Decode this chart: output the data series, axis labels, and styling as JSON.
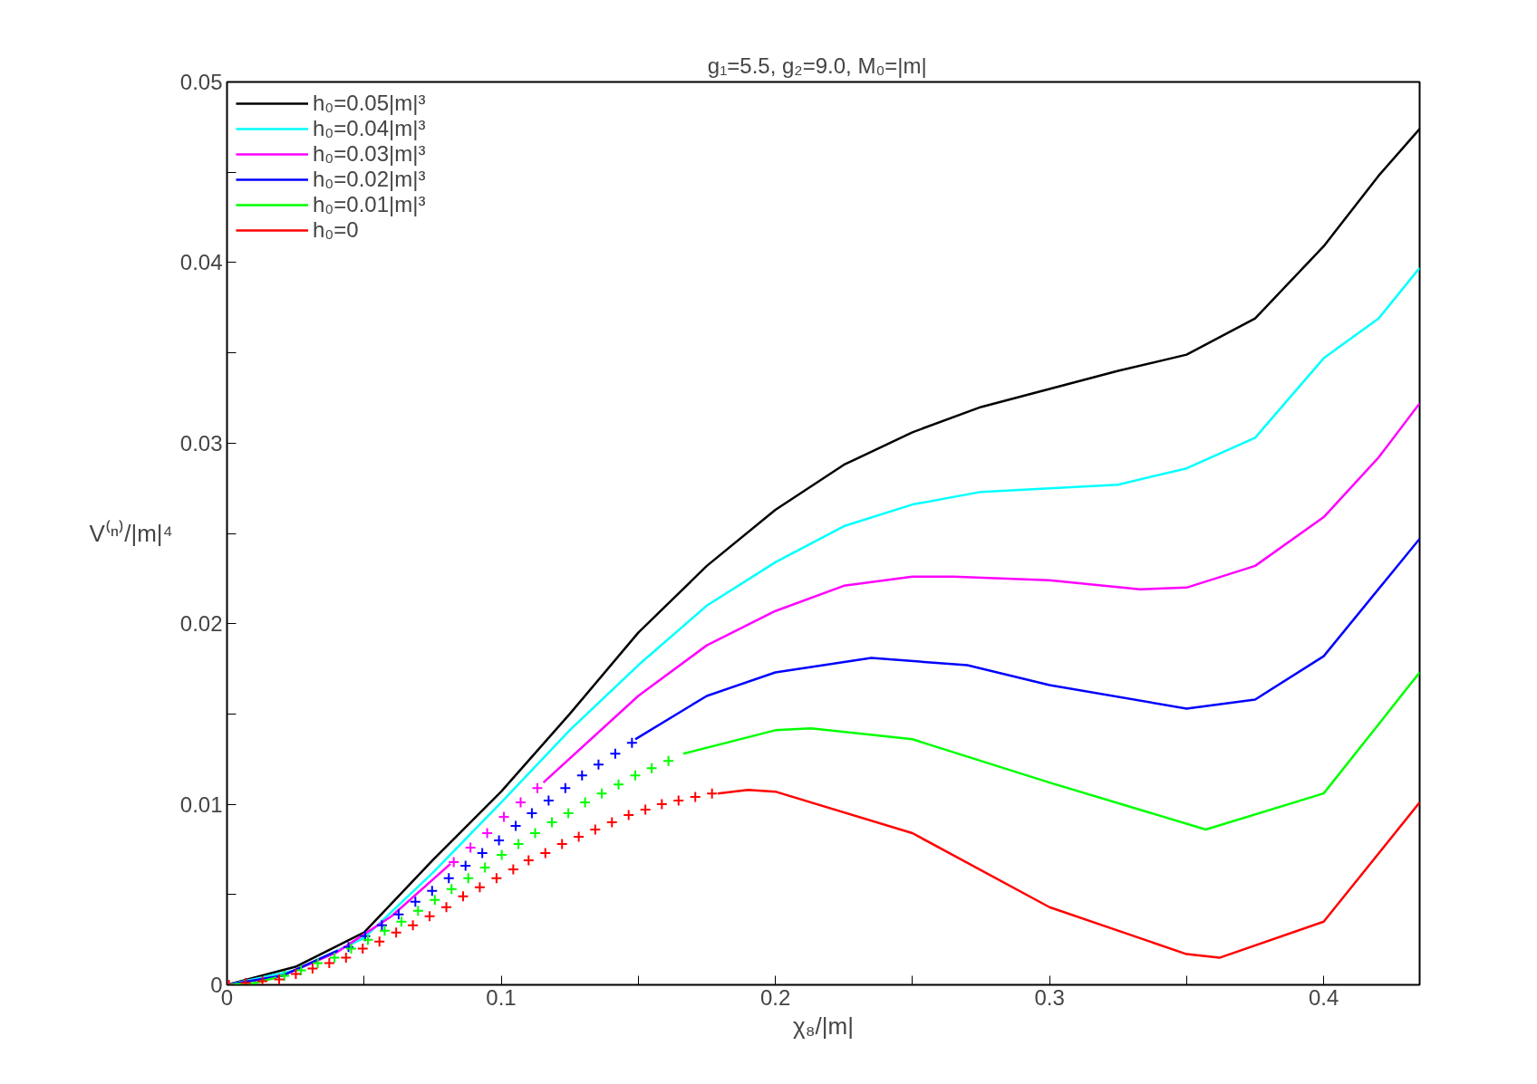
{
  "chart_data": {
    "type": "line",
    "title": "g₁=5.5,  g₂=9.0,  M₀=|m|",
    "xlabel": "χ₈/|m|",
    "ylabel": "V⁽ⁿ⁾/|m|⁴",
    "xlim": [
      0,
      0.435
    ],
    "ylim": [
      0,
      0.05
    ],
    "xticks": [
      0,
      0.1,
      0.2,
      0.3,
      0.4,
      {
        "value": 0.05,
        "label": null
      },
      {
        "value": 0.15,
        "label": null
      },
      {
        "value": 0.25,
        "label": null
      },
      {
        "value": 0.35,
        "label": null
      }
    ],
    "yticks": [
      0,
      0.01,
      0.02,
      0.03,
      0.04,
      0.05,
      {
        "value": 0.005,
        "label": null
      },
      {
        "value": 0.015,
        "label": null
      },
      {
        "value": 0.025,
        "label": null
      },
      {
        "value": 0.035,
        "label": null
      },
      {
        "value": 0.045,
        "label": null
      }
    ],
    "grid": false,
    "legend": "top left",
    "line_style": "solid",
    "series": [
      {
        "name": "h₀=0.05|m|³",
        "color": "#000000",
        "x": [
          0,
          0.025,
          0.05,
          0.075,
          0.1,
          0.125,
          0.15,
          0.175,
          0.2,
          0.225,
          0.25,
          0.275,
          0.3,
          0.325,
          0.35,
          0.375,
          0.4,
          0.42,
          0.435
        ],
        "values": [
          0,
          0.001,
          0.0029,
          0.0069,
          0.0107,
          0.015,
          0.0195,
          0.0232,
          0.0263,
          0.0288,
          0.0306,
          0.032,
          0.033,
          0.034,
          0.0349,
          0.0369,
          0.0409,
          0.0448,
          0.0474
        ]
      },
      {
        "name": "h₀=0.04|m|³",
        "color": "#00ffff",
        "x": [
          0,
          0.025,
          0.05,
          0.075,
          0.1,
          0.125,
          0.15,
          0.175,
          0.2,
          0.225,
          0.25,
          0.275,
          0.3,
          0.325,
          0.35,
          0.375,
          0.4,
          0.42,
          0.435
        ],
        "values": [
          0,
          0.0008,
          0.0026,
          0.0062,
          0.0101,
          0.0141,
          0.0177,
          0.021,
          0.0234,
          0.0254,
          0.0266,
          0.0273,
          0.0275,
          0.0277,
          0.0286,
          0.0303,
          0.0347,
          0.0369,
          0.0397
        ]
      },
      {
        "name": "h₀=0.03|m|³",
        "color": "#ff00ff",
        "x": [
          0.1154,
          0.15,
          0.175,
          0.2,
          0.225,
          0.25,
          0.265,
          0.3,
          0.333,
          0.35,
          0.375,
          0.4,
          0.42,
          0.435
        ],
        "values": [
          0.0112,
          0.016,
          0.0188,
          0.0207,
          0.0221,
          0.0226,
          0.0226,
          0.0224,
          0.0219,
          0.022,
          0.0232,
          0.0259,
          0.0292,
          0.0322
        ]
      },
      {
        "name": "h₀=0.02|m|³",
        "color": "#0000ff",
        "x": [
          0.1489,
          0.175,
          0.2,
          0.235,
          0.27,
          0.3,
          0.35,
          0.375,
          0.4,
          0.435
        ],
        "values": [
          0.0136,
          0.016,
          0.0173,
          0.0181,
          0.0177,
          0.0166,
          0.0153,
          0.0158,
          0.0182,
          0.0247
        ]
      },
      {
        "name": "h₀=0.01|m|³",
        "color": "#00ff00",
        "x": [
          0.1664,
          0.2,
          0.213,
          0.25,
          0.3,
          0.357,
          0.4,
          0.435
        ],
        "values": [
          0.0128,
          0.0141,
          0.0142,
          0.0136,
          0.0112,
          0.0086,
          0.0106,
          0.0173
        ]
      },
      {
        "name": "h₀=0",
        "color": "#ff0000",
        "x": [
          0.179,
          0.19,
          0.2,
          0.25,
          0.3,
          0.35,
          0.362,
          0.4,
          0.435
        ],
        "values": [
          0.0106,
          0.0108,
          0.0107,
          0.0084,
          0.0043,
          0.0017,
          0.0015,
          0.0035,
          0.0101
        ]
      },
      {
        "color": "#ff00ff",
        "x": [
          0,
          0.02,
          0.04,
          0.06,
          0.0815
        ],
        "values": [
          0,
          0.0005,
          0.0018,
          0.0038,
          0.0067
        ]
      },
      {
        "color": "#0000ff",
        "x": [
          0,
          0.02,
          0.0404
        ],
        "values": [
          0,
          0.0005,
          0.0019
        ]
      },
      {
        "color": "#00ff00",
        "x": [
          0,
          0.01,
          0.018
        ],
        "values": [
          0,
          0.0001,
          0.0004
        ]
      },
      {
        "color": "#ff00ff",
        "type": "scatter",
        "marker": "cross",
        "x": [
          0.0827,
          0.0888,
          0.0949,
          0.101,
          0.1071,
          0.1132
        ],
        "values": [
          0.0068,
          0.0076,
          0.0084,
          0.0093,
          0.0101,
          0.0109
        ]
      },
      {
        "color": "#0000ff",
        "type": "scatter",
        "marker": "cross",
        "x": [
          0.0443,
          0.0504,
          0.0565,
          0.0626,
          0.0687,
          0.0748,
          0.0809,
          0.087,
          0.0931,
          0.0992,
          0.1053,
          0.1112,
          0.1173,
          0.1234,
          0.1295,
          0.1355,
          0.1416,
          0.1477
        ],
        "values": [
          0.0021,
          0.0027,
          0.0033,
          0.0039,
          0.0046,
          0.0052,
          0.0059,
          0.0066,
          0.0073,
          0.008,
          0.0088,
          0.0095,
          0.0102,
          0.0109,
          0.0116,
          0.0122,
          0.0128,
          0.0134
        ]
      },
      {
        "color": "#00ff00",
        "type": "scatter",
        "marker": "cross",
        "x": [
          0.0209,
          0.027,
          0.0331,
          0.0392,
          0.0453,
          0.0514,
          0.0575,
          0.0636,
          0.0697,
          0.0758,
          0.0819,
          0.088,
          0.0941,
          0.1002,
          0.1063,
          0.1124,
          0.1185,
          0.1245,
          0.1306,
          0.1367,
          0.1428,
          0.1489,
          0.1549,
          0.161
        ],
        "values": [
          0.0005,
          0.0008,
          0.0012,
          0.0015,
          0.002,
          0.0025,
          0.003,
          0.0035,
          0.0041,
          0.0047,
          0.0053,
          0.0059,
          0.0065,
          0.0072,
          0.0078,
          0.0084,
          0.009,
          0.0095,
          0.0101,
          0.0106,
          0.0111,
          0.0116,
          0.012,
          0.0124
        ]
      },
      {
        "color": "#ff0000",
        "type": "scatter",
        "marker": "cross",
        "x": [
          0.0007,
          0.0068,
          0.0129,
          0.019,
          0.0251,
          0.0312,
          0.0373,
          0.0434,
          0.0495,
          0.0556,
          0.0617,
          0.0678,
          0.0739,
          0.08,
          0.0861,
          0.0922,
          0.0983,
          0.1044,
          0.11,
          0.1161,
          0.1222,
          0.1283,
          0.1343,
          0.1404,
          0.1465,
          0.1526,
          0.1586,
          0.1647,
          0.1708,
          0.1769
        ],
        "values": [
          0,
          0.0001,
          0.0002,
          0.0003,
          0.0006,
          0.0009,
          0.0012,
          0.0015,
          0.002,
          0.0024,
          0.0029,
          0.0033,
          0.0038,
          0.0043,
          0.0049,
          0.0054,
          0.0059,
          0.0064,
          0.0069,
          0.0073,
          0.0078,
          0.0082,
          0.0086,
          0.009,
          0.0094,
          0.0097,
          0.01,
          0.0102,
          0.0104,
          0.0106
        ]
      }
    ]
  }
}
